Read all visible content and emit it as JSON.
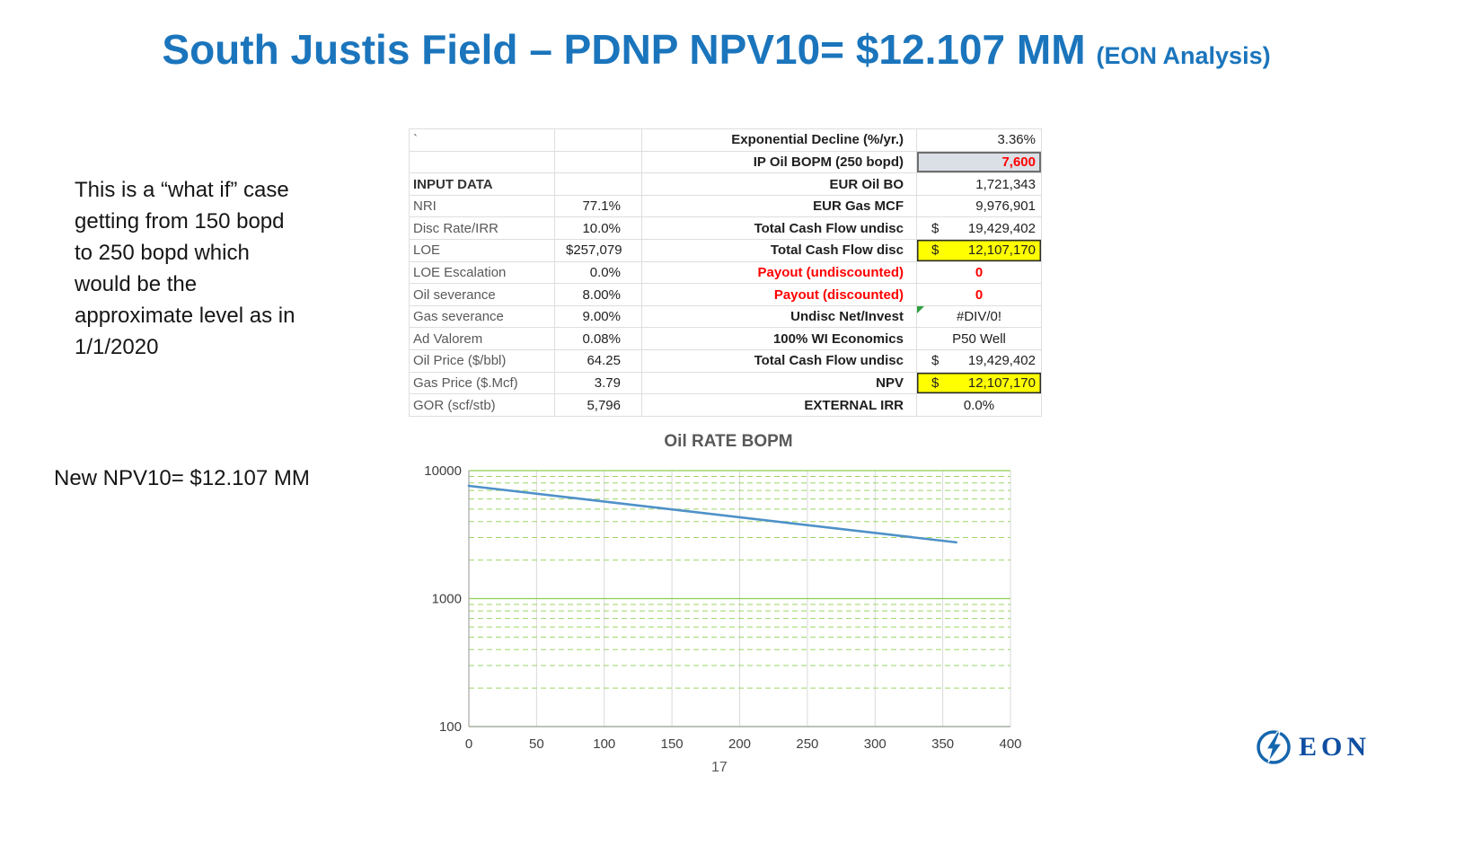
{
  "title": {
    "main": "South Justis Field – PDNP NPV10= $12.107 MM",
    "suffix": "(EON Analysis)"
  },
  "notes": {
    "what_if": "This is a “what if” case\ngetting from 150 bopd\nto 250 bopd which\nwould be the\napproximate level as in\n1/1/2020",
    "new_npv": "New NPV10= $12.107 MM"
  },
  "table": {
    "rows": [
      {
        "ll": "`",
        "lv": "",
        "rl": "Exponential Decline (%/yr.)",
        "rv": "3.36%",
        "rv_align": "right"
      },
      {
        "ll": "",
        "lv": "",
        "rl": "IP Oil BOPM (250 bopd)",
        "rv": "7,600",
        "rv_align": "right",
        "rv_box": "gray",
        "rv_red": true
      },
      {
        "ll": "INPUT DATA",
        "ll_strong": true,
        "lv": "",
        "rl": "EUR Oil BO",
        "rv": "1,721,343",
        "rv_align": "right"
      },
      {
        "ll": "NRI",
        "lv": "77.1%",
        "rl": "EUR Gas  MCF",
        "rv": "9,976,901",
        "rv_align": "right"
      },
      {
        "ll": "Disc Rate/IRR",
        "lv": "10.0%",
        "rl": "Total Cash Flow undisc",
        "rv": "19,429,402",
        "rv_dollar": true,
        "rv_align": "right"
      },
      {
        "ll": "LOE",
        "lv": "257,079",
        "lv_dollar": true,
        "rl": "Total Cash Flow disc",
        "rv": "12,107,170",
        "rv_dollar": true,
        "rv_align": "right",
        "rv_box": "yellow"
      },
      {
        "ll": "LOE Escalation",
        "lv": "0.0%",
        "rl": "Payout (undiscounted)",
        "rl_red": true,
        "rv": "0",
        "rv_red": true,
        "rv_align": "center"
      },
      {
        "ll": "Oil severance",
        "lv": "8.00%",
        "rl": "Payout (discounted)",
        "rl_red": true,
        "rv": "0",
        "rv_red": true,
        "rv_align": "center"
      },
      {
        "ll": "Gas severance",
        "lv": "9.00%",
        "rl": "Undisc Net/Invest",
        "rv": "#DIV/0!",
        "rv_align": "center",
        "rv_flag": true
      },
      {
        "ll": "Ad Valorem",
        "lv": "0.08%",
        "rl": "100% WI Economics",
        "rv": "P50 Well",
        "rv_align": "center"
      },
      {
        "ll": "Oil Price ($/bbl)",
        "lv": "64.25",
        "rl": "Total Cash Flow undisc",
        "rv": "19,429,402",
        "rv_dollar": true,
        "rv_align": "right"
      },
      {
        "ll": "Gas Price ($.Mcf)",
        "lv": "3.79",
        "rl": "NPV",
        "rv": "12,107,170",
        "rv_dollar": true,
        "rv_align": "right",
        "rv_box": "yellow"
      },
      {
        "ll": "GOR (scf/stb)",
        "lv": "5,796",
        "rl": "EXTERNAL IRR",
        "rv": "0.0%",
        "rv_align": "center"
      }
    ]
  },
  "chart_data": {
    "type": "line",
    "title": "Oil RATE BOPM",
    "xlabel": "",
    "ylabel": "",
    "xlim": [
      0,
      400
    ],
    "ylim": [
      100,
      10000
    ],
    "y_scale": "log",
    "x_ticks": [
      0,
      50,
      100,
      150,
      200,
      250,
      300,
      350,
      400
    ],
    "y_ticks": [
      100,
      1000,
      10000
    ],
    "grid": true,
    "legend": "none",
    "series": [
      {
        "name": "Oil Rate BOPM",
        "x": [
          0,
          360
        ],
        "y": [
          7600,
          2750
        ],
        "color": "#4e91c8"
      }
    ],
    "grid_major_color": "#8fce4e",
    "grid_minor_color": "#9ed565",
    "grid_vertical_color": "#d9d9d9"
  },
  "footer": {
    "page_number": "17",
    "logo_text": "EON"
  },
  "colors": {
    "title_blue": "#1b75bc",
    "highlight_yellow": "#ffff00",
    "highlight_gray": "#dbe0e6",
    "alert_red": "#ff0000"
  }
}
